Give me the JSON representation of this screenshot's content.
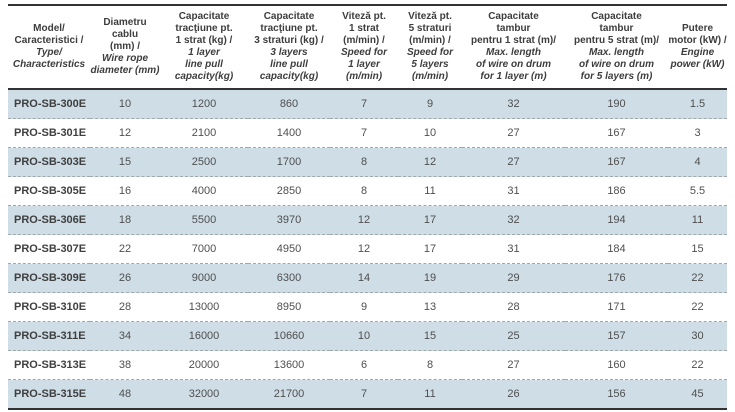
{
  "colors": {
    "row_alternate": "#cedde6",
    "row_plain": "#ffffff",
    "rule_dark": "#333333",
    "rule_dashed": "#9fa9ad",
    "text": "#4f4f4f"
  },
  "table": {
    "columns": [
      {
        "ro": "Model/\nCaracteristici /",
        "en": "Type/\nCharacteristics"
      },
      {
        "ro": "Diametru cablu\n(mm) /",
        "en": "Wire rope\ndiameter (mm)"
      },
      {
        "ro": "Capacitate\ntracţiune pt.\n1 strat (kg) /",
        "en": "1 layer\nline pull\ncapacity(kg)"
      },
      {
        "ro": "Capacitate\ntracţiune pt.\n3 straturi (kg) /",
        "en": "3 layers\nline pull\ncapacity(kg)"
      },
      {
        "ro": "Viteză pt.\n1 strat\n(m/min) /",
        "en": "Speed for\n1 layer\n(m/min)"
      },
      {
        "ro": "Viteză pt.\n5 straturi\n(m/min) /",
        "en": "Speed for\n5 layers\n(m/min)"
      },
      {
        "ro": "Capacitate\ntambur\npentru 1 strat (m)/",
        "en": "Max. length\nof wire on drum\nfor 1 layer (m)"
      },
      {
        "ro": "Capacitate\ntambur\npentru 5 strat (m)/",
        "en": "Max. length\nof wire on drum\nfor 5 layers (m)"
      },
      {
        "ro": "Putere\nmotor (kW) /",
        "en": "Engine\npower (kW)"
      }
    ],
    "rows": [
      {
        "model": "PRO-SB-300E",
        "values": [
          "10",
          "1200",
          "860",
          "7",
          "9",
          "32",
          "190",
          "1.5"
        ]
      },
      {
        "model": "PRO-SB-301E",
        "values": [
          "12",
          "2100",
          "1400",
          "7",
          "10",
          "27",
          "167",
          "3"
        ]
      },
      {
        "model": "PRO-SB-303E",
        "values": [
          "15",
          "2500",
          "1700",
          "8",
          "12",
          "27",
          "167",
          "4"
        ]
      },
      {
        "model": "PRO-SB-305E",
        "values": [
          "16",
          "4000",
          "2850",
          "8",
          "11",
          "31",
          "186",
          "5.5"
        ]
      },
      {
        "model": "PRO-SB-306E",
        "values": [
          "18",
          "5500",
          "3970",
          "12",
          "17",
          "32",
          "194",
          "11"
        ]
      },
      {
        "model": "PRO-SB-307E",
        "values": [
          "22",
          "7000",
          "4950",
          "12",
          "17",
          "31",
          "184",
          "15"
        ]
      },
      {
        "model": "PRO-SB-309E",
        "values": [
          "26",
          "9000",
          "6300",
          "14",
          "19",
          "29",
          "176",
          "22"
        ]
      },
      {
        "model": "PRO-SB-310E",
        "values": [
          "28",
          "13000",
          "8950",
          "9",
          "13",
          "28",
          "171",
          "22"
        ]
      },
      {
        "model": "PRO-SB-311E",
        "values": [
          "34",
          "16000",
          "10660",
          "10",
          "15",
          "25",
          "157",
          "30"
        ]
      },
      {
        "model": "PRO-SB-313E",
        "values": [
          "38",
          "20000",
          "13600",
          "6",
          "8",
          "27",
          "160",
          "22"
        ]
      },
      {
        "model": "PRO-SB-315E",
        "values": [
          "48",
          "32000",
          "21700",
          "7",
          "11",
          "26",
          "156",
          "45"
        ]
      }
    ]
  }
}
